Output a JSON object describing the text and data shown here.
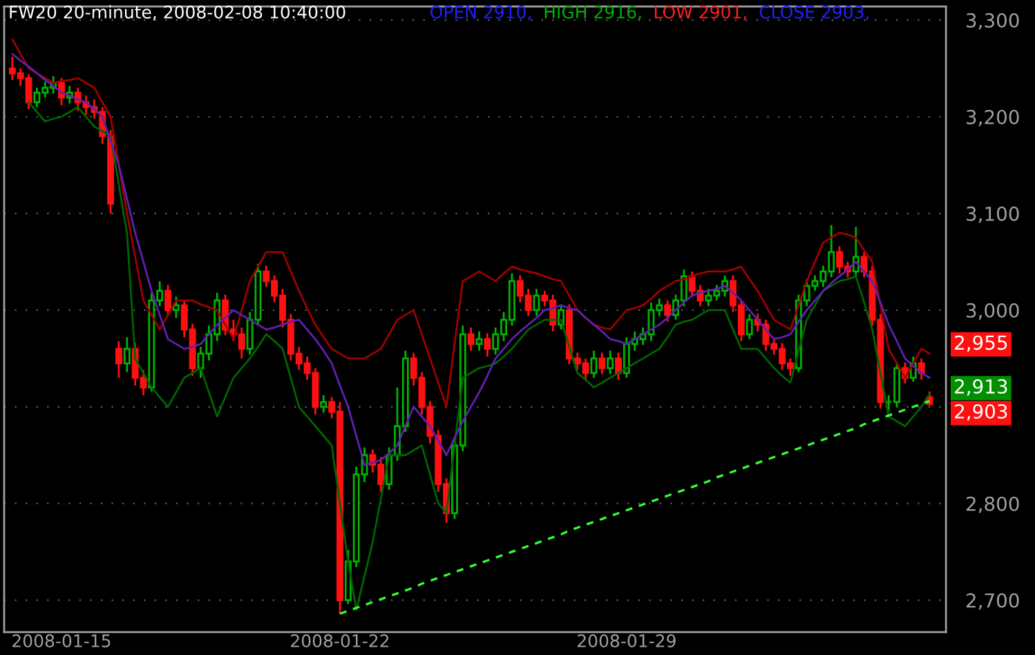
{
  "chart_data": {
    "type": "candlestick",
    "title": "FW20 20-minute, 2008-02-08 10:40:00",
    "categories": [
      null,
      null,
      null,
      null,
      null,
      null,
      "2008-01-15",
      null,
      null,
      null,
      null,
      null,
      null,
      null,
      null,
      null,
      null,
      null,
      null,
      null,
      null,
      null,
      null,
      null,
      null,
      null,
      null,
      null,
      null,
      null,
      null,
      null,
      null,
      null,
      null,
      null,
      null,
      null,
      null,
      null,
      "2008-01-22",
      null,
      null,
      null,
      null,
      null,
      null,
      null,
      null,
      null,
      null,
      null,
      null,
      null,
      null,
      null,
      null,
      null,
      null,
      null,
      null,
      null,
      null,
      null,
      null,
      null,
      null,
      null,
      null,
      null,
      null,
      null,
      null,
      null,
      null,
      "2008-01-29",
      null,
      null,
      null,
      null,
      null,
      null,
      null,
      null,
      null,
      null,
      null,
      null,
      null,
      null,
      null,
      null,
      null,
      null,
      null,
      null,
      null,
      null,
      null,
      null,
      null,
      null,
      null,
      null,
      null,
      null,
      null,
      null,
      null,
      null,
      null,
      null,
      null
    ],
    "ohlc": [
      [
        3250,
        3262,
        3238,
        3245
      ],
      [
        3245,
        3250,
        3232,
        3240
      ],
      [
        3240,
        3244,
        3208,
        3215
      ],
      [
        3215,
        3230,
        3210,
        3225
      ],
      [
        3225,
        3236,
        3220,
        3230
      ],
      [
        3230,
        3242,
        3224,
        3235
      ],
      [
        3235,
        3240,
        3212,
        3220
      ],
      [
        3220,
        3232,
        3214,
        3225
      ],
      [
        3225,
        3230,
        3206,
        3215
      ],
      [
        3215,
        3222,
        3202,
        3210
      ],
      [
        3210,
        3218,
        3198,
        3205
      ],
      [
        3205,
        3210,
        3172,
        3180
      ],
      [
        3180,
        3186,
        3100,
        3110
      ],
      [
        2960,
        2968,
        2930,
        2945
      ],
      [
        2945,
        2972,
        2936,
        2960
      ],
      [
        2960,
        2966,
        2922,
        2930
      ],
      [
        2930,
        2938,
        2912,
        2920
      ],
      [
        2920,
        3018,
        2916,
        3010
      ],
      [
        3010,
        3030,
        3004,
        3020
      ],
      [
        3020,
        3026,
        2994,
        3000
      ],
      [
        3000,
        3014,
        2992,
        3005
      ],
      [
        3005,
        3010,
        2972,
        2980
      ],
      [
        2980,
        2986,
        2932,
        2940
      ],
      [
        2940,
        2962,
        2930,
        2955
      ],
      [
        2955,
        2984,
        2948,
        2975
      ],
      [
        2975,
        3018,
        2968,
        3010
      ],
      [
        3010,
        3016,
        2974,
        2980
      ],
      [
        2980,
        2990,
        2968,
        2975
      ],
      [
        2975,
        2982,
        2950,
        2960
      ],
      [
        2960,
        2998,
        2954,
        2990
      ],
      [
        2990,
        3048,
        2984,
        3040
      ],
      [
        3040,
        3046,
        3024,
        3030
      ],
      [
        3030,
        3036,
        3008,
        3015
      ],
      [
        3015,
        3022,
        2982,
        2990
      ],
      [
        2990,
        2996,
        2948,
        2955
      ],
      [
        2955,
        2962,
        2938,
        2945
      ],
      [
        2945,
        2952,
        2928,
        2935
      ],
      [
        2935,
        2940,
        2892,
        2900
      ],
      [
        2900,
        2912,
        2894,
        2905
      ],
      [
        2905,
        2910,
        2888,
        2895
      ],
      [
        2895,
        2905,
        2686,
        2700
      ],
      [
        2700,
        2752,
        2696,
        2740
      ],
      [
        2740,
        2838,
        2734,
        2830
      ],
      [
        2830,
        2858,
        2822,
        2850
      ],
      [
        2850,
        2856,
        2832,
        2840
      ],
      [
        2840,
        2848,
        2812,
        2820
      ],
      [
        2820,
        2858,
        2814,
        2850
      ],
      [
        2850,
        2920,
        2844,
        2880
      ],
      [
        2880,
        2958,
        2874,
        2950
      ],
      [
        2950,
        2956,
        2922,
        2930
      ],
      [
        2930,
        2936,
        2892,
        2900
      ],
      [
        2900,
        2906,
        2862,
        2870
      ],
      [
        2870,
        2876,
        2812,
        2820
      ],
      [
        2820,
        2826,
        2780,
        2790
      ],
      [
        2790,
        2868,
        2784,
        2860
      ],
      [
        2860,
        2984,
        2854,
        2975
      ],
      [
        2975,
        2982,
        2958,
        2965
      ],
      [
        2965,
        2978,
        2958,
        2970
      ],
      [
        2970,
        2976,
        2952,
        2960
      ],
      [
        2960,
        2982,
        2954,
        2975
      ],
      [
        2975,
        2998,
        2968,
        2990
      ],
      [
        2990,
        3038,
        2984,
        3030
      ],
      [
        3030,
        3036,
        3008,
        3015
      ],
      [
        3015,
        3022,
        2994,
        3000
      ],
      [
        3000,
        3022,
        2994,
        3015
      ],
      [
        3015,
        3020,
        3004,
        3010
      ],
      [
        3010,
        3016,
        2978,
        2985
      ],
      [
        2985,
        3006,
        2980,
        3000
      ],
      [
        3000,
        3006,
        2944,
        2950
      ],
      [
        2950,
        2956,
        2938,
        2945
      ],
      [
        2945,
        2950,
        2928,
        2935
      ],
      [
        2935,
        2958,
        2930,
        2950
      ],
      [
        2950,
        2956,
        2934,
        2940
      ],
      [
        2940,
        2958,
        2934,
        2950
      ],
      [
        2950,
        2956,
        2928,
        2935
      ],
      [
        2935,
        2972,
        2930,
        2965
      ],
      [
        2965,
        2978,
        2958,
        2970
      ],
      [
        2970,
        2982,
        2964,
        2975
      ],
      [
        2975,
        3008,
        2968,
        3000
      ],
      [
        3000,
        3012,
        2994,
        3005
      ],
      [
        3005,
        3010,
        2988,
        2995
      ],
      [
        2995,
        3016,
        2990,
        3010
      ],
      [
        3010,
        3042,
        3004,
        3035
      ],
      [
        3035,
        3040,
        3014,
        3020
      ],
      [
        3020,
        3026,
        3004,
        3010
      ],
      [
        3010,
        3022,
        3004,
        3015
      ],
      [
        3015,
        3026,
        3010,
        3020
      ],
      [
        3020,
        3036,
        3014,
        3030
      ],
      [
        3030,
        3036,
        2998,
        3005
      ],
      [
        3005,
        3010,
        2968,
        2975
      ],
      [
        2975,
        2996,
        2970,
        2990
      ],
      [
        2990,
        2996,
        2978,
        2985
      ],
      [
        2985,
        2990,
        2958,
        2965
      ],
      [
        2965,
        2972,
        2954,
        2960
      ],
      [
        2960,
        2966,
        2938,
        2945
      ],
      [
        2945,
        2950,
        2932,
        2940
      ],
      [
        2940,
        3016,
        2936,
        3010
      ],
      [
        3010,
        3032,
        3004,
        3025
      ],
      [
        3025,
        3036,
        3020,
        3030
      ],
      [
        3030,
        3046,
        3024,
        3040
      ],
      [
        3040,
        3088,
        3034,
        3060
      ],
      [
        3060,
        3066,
        3038,
        3045
      ],
      [
        3045,
        3050,
        3034,
        3040
      ],
      [
        3040,
        3086,
        3034,
        3055
      ],
      [
        3055,
        3060,
        3034,
        3040
      ],
      [
        3040,
        3046,
        2984,
        2990
      ],
      [
        2990,
        2996,
        2898,
        2905
      ],
      [
        2905,
        2912,
        2896,
        2905
      ],
      [
        2905,
        2946,
        2900,
        2940
      ],
      [
        2940,
        2946,
        2924,
        2930
      ],
      [
        2930,
        2952,
        2926,
        2945
      ],
      [
        2945,
        2950,
        2928,
        2935
      ],
      [
        2910,
        2916,
        2901,
        2903
      ]
    ],
    "series": [
      {
        "type": "line",
        "color": "#a00000",
        "line_style": "solid",
        "values": [
          3280,
          3265,
          3250,
          3245,
          3240,
          3235,
          3237,
          3238,
          3240,
          3235,
          3230,
          3215,
          3200,
          3150,
          3100,
          3055,
          3010,
          2995,
          2980,
          2995,
          3010,
          3010,
          3010,
          3006,
          3003,
          3000,
          2985,
          2970,
          3000,
          3030,
          3045,
          3060,
          3060,
          3060,
          3040,
          3020,
          3002,
          2985,
          2972,
          2960,
          2955,
          2950,
          2950,
          2950,
          2955,
          2960,
          2975,
          2990,
          2995,
          3000,
          2975,
          2950,
          2925,
          2900,
          2965,
          3030,
          3035,
          3040,
          3035,
          3030,
          3038,
          3045,
          3042,
          3040,
          3038,
          3035,
          3032,
          3030,
          3015,
          3000,
          2992,
          2985,
          2982,
          2980,
          2990,
          3000,
          3002,
          3005,
          3012,
          3020,
          3025,
          3030,
          3032,
          3035,
          3038,
          3040,
          3040,
          3040,
          3042,
          3045,
          3032,
          3020,
          3005,
          2990,
          2985,
          2980,
          3005,
          3030,
          3050,
          3070,
          3075,
          3080,
          3078,
          3075,
          3062,
          3050,
          3005,
          2960,
          2945,
          2930,
          2945,
          2960,
          2955
        ]
      },
      {
        "type": "line",
        "color": "#006400",
        "line_style": "solid",
        "values": [
          null,
          null,
          3215,
          3205,
          3195,
          3198,
          3200,
          3205,
          3210,
          3200,
          3190,
          3185,
          3180,
          3130,
          3080,
          2950,
          2935,
          2920,
          2910,
          2900,
          2915,
          2930,
          2935,
          2940,
          2915,
          2890,
          2910,
          2930,
          2940,
          2950,
          2962,
          2975,
          2968,
          2960,
          2930,
          2900,
          2890,
          2880,
          2870,
          2860,
          2800,
          2740,
          2690,
          2725,
          2760,
          2805,
          2850,
          2850,
          2850,
          2855,
          2860,
          2830,
          2800,
          2790,
          2860,
          2930,
          2935,
          2940,
          2942,
          2945,
          2952,
          2960,
          2970,
          2980,
          2985,
          2990,
          2990,
          2990,
          2962,
          2935,
          2928,
          2920,
          2925,
          2930,
          2935,
          2940,
          2945,
          2950,
          2955,
          2960,
          2972,
          2985,
          2988,
          2990,
          2995,
          3000,
          3000,
          3000,
          2980,
          2960,
          2960,
          2960,
          2950,
          2940,
          2932,
          2925,
          2958,
          2990,
          3005,
          3020,
          3025,
          3030,
          3032,
          3035,
          3008,
          2980,
          2935,
          2890,
          2885,
          2880,
          2890,
          2900,
          2913
        ]
      },
      {
        "type": "line",
        "color": "#6020b0",
        "line_style": "solid",
        "values": [
          3265,
          3258,
          3252,
          3245,
          3238,
          3232,
          3225,
          3222,
          3218,
          3215,
          3208,
          3200,
          3175,
          3150,
          3115,
          3080,
          3050,
          3020,
          2995,
          2970,
          2965,
          2960,
          2962,
          2965,
          2975,
          2985,
          2992,
          3000,
          2995,
          2990,
          2985,
          2980,
          2982,
          2985,
          2988,
          2990,
          2980,
          2970,
          2958,
          2945,
          2922,
          2900,
          2870,
          2840,
          2842,
          2845,
          2852,
          2860,
          2880,
          2900,
          2890,
          2880,
          2865,
          2850,
          2868,
          2885,
          2900,
          2915,
          2932,
          2950,
          2960,
          2970,
          2978,
          2985,
          2992,
          3000,
          3002,
          3005,
          3002,
          3000,
          2992,
          2985,
          2978,
          2970,
          2968,
          2965,
          2970,
          2975,
          2980,
          2985,
          2992,
          3000,
          3008,
          3015,
          3018,
          3020,
          3022,
          3025,
          3018,
          3010,
          3000,
          2990,
          2980,
          2970,
          2972,
          2975,
          2988,
          3000,
          3010,
          3020,
          3028,
          3035,
          3042,
          3050,
          3040,
          3030,
          3008,
          2985,
          2968,
          2950,
          2942,
          2935,
          2930
        ]
      },
      {
        "type": "line",
        "color": "#33ff33",
        "line_style": "dashed",
        "values": [
          null,
          null,
          null,
          null,
          null,
          null,
          null,
          null,
          null,
          null,
          null,
          null,
          null,
          null,
          null,
          null,
          null,
          null,
          null,
          null,
          null,
          null,
          null,
          null,
          null,
          null,
          null,
          null,
          null,
          null,
          null,
          null,
          null,
          null,
          null,
          null,
          null,
          null,
          null,
          null,
          2686,
          2689,
          2692,
          2695,
          2698,
          2701,
          2704,
          2707,
          2710,
          2713,
          2717,
          2720,
          2723,
          2726,
          2729,
          2732,
          2735,
          2738,
          2741,
          2744,
          2747,
          2750,
          2753,
          2756,
          2759,
          2762,
          2765,
          2768,
          2772,
          2775,
          2778,
          2781,
          2784,
          2787,
          2790,
          2793,
          2796,
          2799,
          2802,
          2805,
          2808,
          2811,
          2814,
          2817,
          2820,
          2823,
          2827,
          2830,
          2833,
          2836,
          2839,
          2842,
          2845,
          2848,
          2851,
          2854,
          2857,
          2860,
          2863,
          2866,
          2869,
          2872,
          2875,
          2878,
          2882,
          2885,
          2888,
          2891,
          2894,
          2897,
          2900,
          2903,
          2906
        ]
      }
    ],
    "ylim": [
      2667,
      3314
    ],
    "yticks": [
      {
        "value": 2700,
        "label": "2,700"
      },
      {
        "value": 2800,
        "label": "2,800"
      },
      {
        "value": 2900,
        "label": null
      },
      {
        "value": 3000,
        "label": "3,000"
      },
      {
        "value": 3100,
        "label": "3,100"
      },
      {
        "value": 3200,
        "label": "3,200"
      },
      {
        "value": 3300,
        "label": "3,300"
      }
    ],
    "grid": "y",
    "subtitle": "OPEN 2910, HIGH 2916, LOW 2901, CLOSE 2903,",
    "annotations": [
      "2,955",
      "2,913",
      "2,903"
    ]
  }
}
